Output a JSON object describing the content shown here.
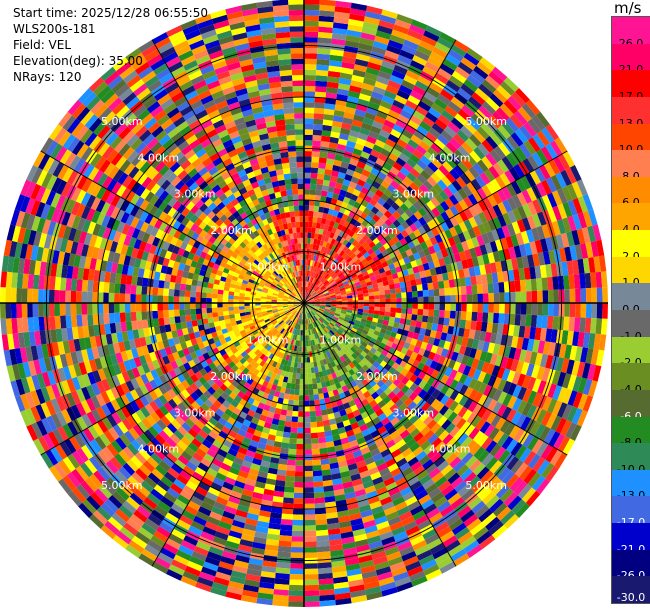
{
  "info": {
    "start_time": "Start time: 2025/12/28 06:55:50",
    "station": "WLS200s-181",
    "field": "Field: VEL",
    "elevation": "Elevation(deg): 35.00",
    "nrays": "NRays: 120"
  },
  "colorbar": {
    "unit": "m/s",
    "bins": [
      {
        "label": "26.0",
        "color": "#ff1493"
      },
      {
        "label": "21.0",
        "color": "#ff0066"
      },
      {
        "label": "17.0",
        "color": "#ff0000"
      },
      {
        "label": "13.0",
        "color": "#ff3030"
      },
      {
        "label": "10.0",
        "color": "#ff4500"
      },
      {
        "label": "8.0",
        "color": "#ff7f50"
      },
      {
        "label": "6.0",
        "color": "#ff8c00"
      },
      {
        "label": "4.0",
        "color": "#ffa500"
      },
      {
        "label": "2.0",
        "color": "#ffff00"
      },
      {
        "label": "1.0",
        "color": "#ffd700"
      },
      {
        "label": "0.0",
        "color": "#778899"
      },
      {
        "label": "-1.0",
        "color": "#696969"
      },
      {
        "label": "-2.0",
        "color": "#9acd32"
      },
      {
        "label": "-4.0",
        "color": "#6b8e23"
      },
      {
        "label": "-6.0",
        "color": "#556b2f"
      },
      {
        "label": "-8.0",
        "color": "#228b22"
      },
      {
        "label": "-10.0",
        "color": "#2e8b57"
      },
      {
        "label": "-13.0",
        "color": "#1e90ff"
      },
      {
        "label": "-17.0",
        "color": "#4169e1"
      },
      {
        "label": "-21.0",
        "color": "#0000cd"
      },
      {
        "label": "-26.0",
        "color": "#000080"
      },
      {
        "label": "-30.0",
        "color": "#191970"
      }
    ]
  },
  "chart_data": {
    "type": "heatmap",
    "projection": "polar-ppi",
    "field": "VEL",
    "units": "m/s",
    "range_rings_km": [
      1.0,
      2.0,
      3.0,
      4.0,
      5.0
    ],
    "ring_labels": [
      "1.00km",
      "2.00km",
      "3.00km",
      "4.00km",
      "5.00km"
    ],
    "max_range_km": 5.9,
    "n_rays": 120,
    "spoke_count": 12,
    "color_bins": [
      -30,
      -26,
      -21,
      -17,
      -13,
      -10,
      -8,
      -6,
      -4,
      -2,
      -1,
      0,
      1,
      2,
      4,
      6,
      8,
      10,
      13,
      17,
      21,
      26,
      30
    ],
    "near_field_km": 1.8,
    "near_field_pattern": "warm (orange/yellow) values west of origin, red values north-east, green/negative values south-east; far field is mixed noise across all bins"
  }
}
